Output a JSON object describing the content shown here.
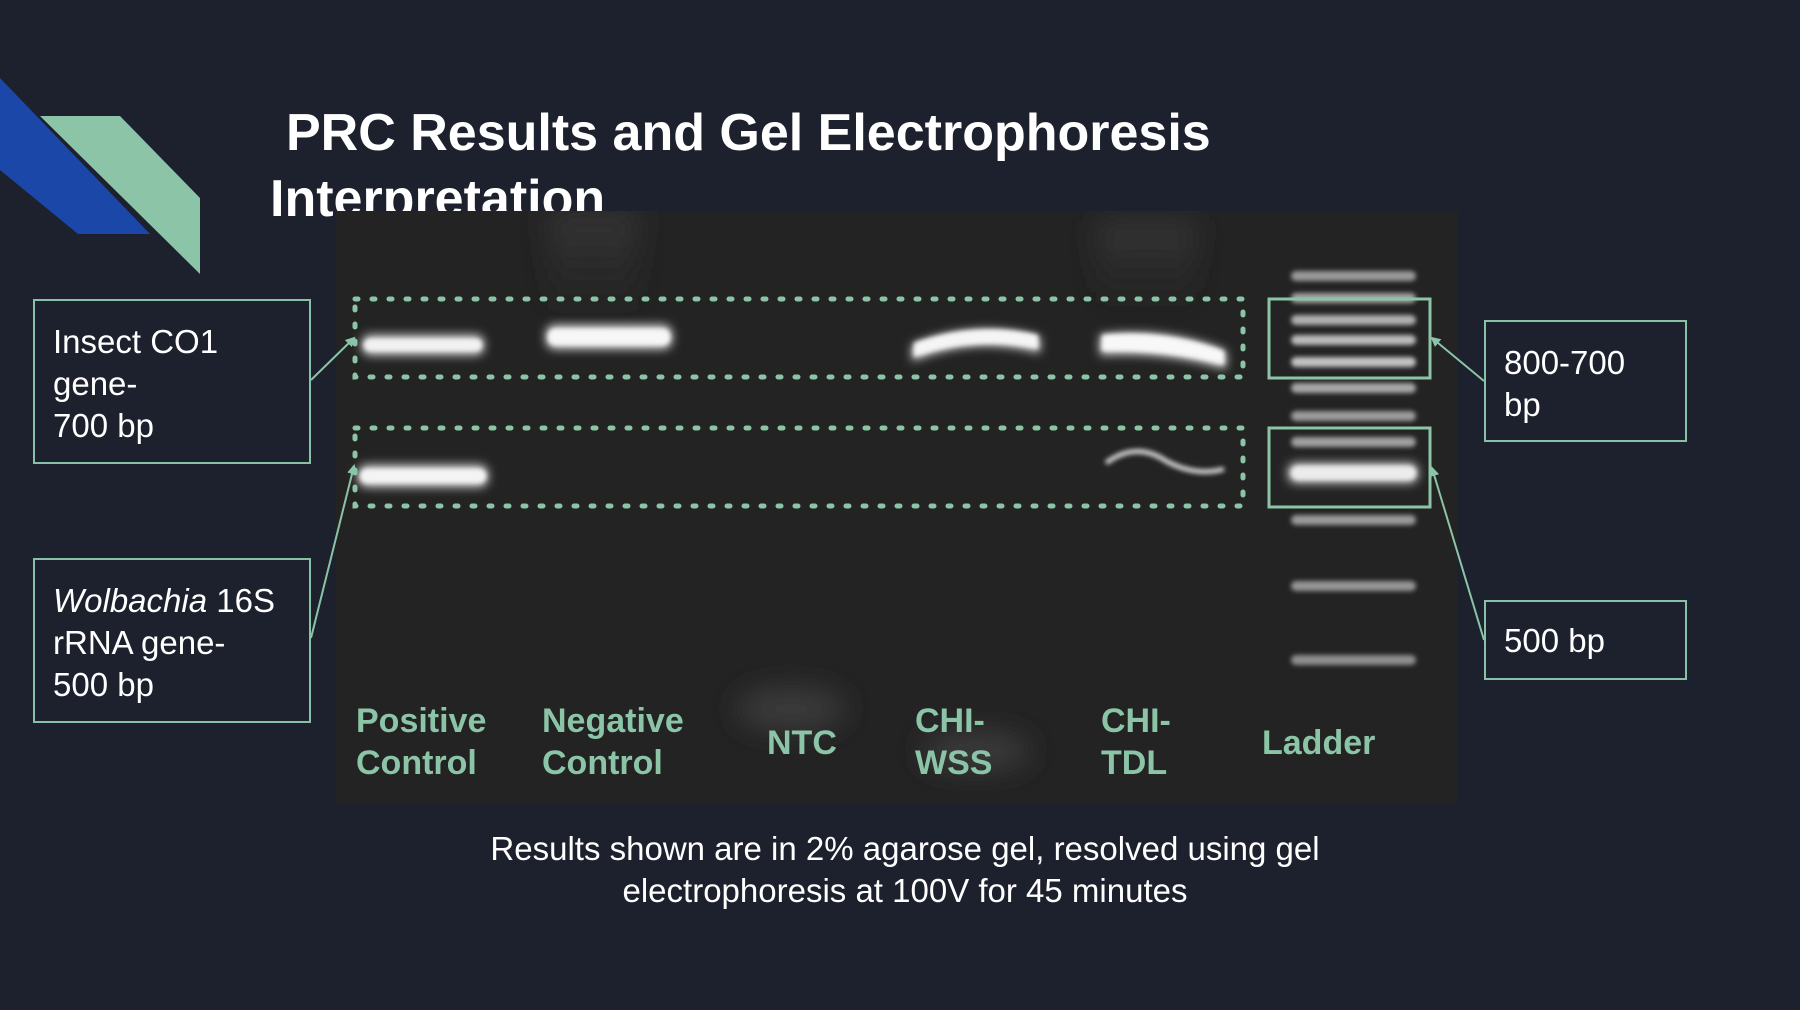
{
  "title": {
    "line1": "PRC Results and Gel Electrophoresis",
    "line2": "Interpretation"
  },
  "colors": {
    "background": "#1d212d",
    "accent_green": "#8bc4a7",
    "accent_blue": "#1a47a8",
    "gel": "#232323"
  },
  "callouts": {
    "co1": {
      "line1": "Insect CO1",
      "line2": "gene-",
      "line3": "700 bp"
    },
    "wolbachia": {
      "italic": "Wolbachia",
      "rest": " 16S",
      "line2": "rRNA gene-",
      "line3": "500 bp"
    },
    "upper_ladder": {
      "line1": "800-700",
      "line2": "bp"
    },
    "lower_ladder": {
      "line1": "500 bp"
    }
  },
  "lanes": [
    {
      "line1": "Positive",
      "line2": "Control"
    },
    {
      "line1": "Negative",
      "line2": "Control"
    },
    {
      "line1": "NTC",
      "line2": ""
    },
    {
      "line1": "CHI-",
      "line2": "WSS"
    },
    {
      "line1": "CHI-",
      "line2": "TDL"
    },
    {
      "line1": "Ladder",
      "line2": ""
    }
  ],
  "caption": {
    "line1": "Results shown are in 2% agarose gel, resolved using gel",
    "line2": "electrophoresis at 100V for 45 minutes"
  }
}
